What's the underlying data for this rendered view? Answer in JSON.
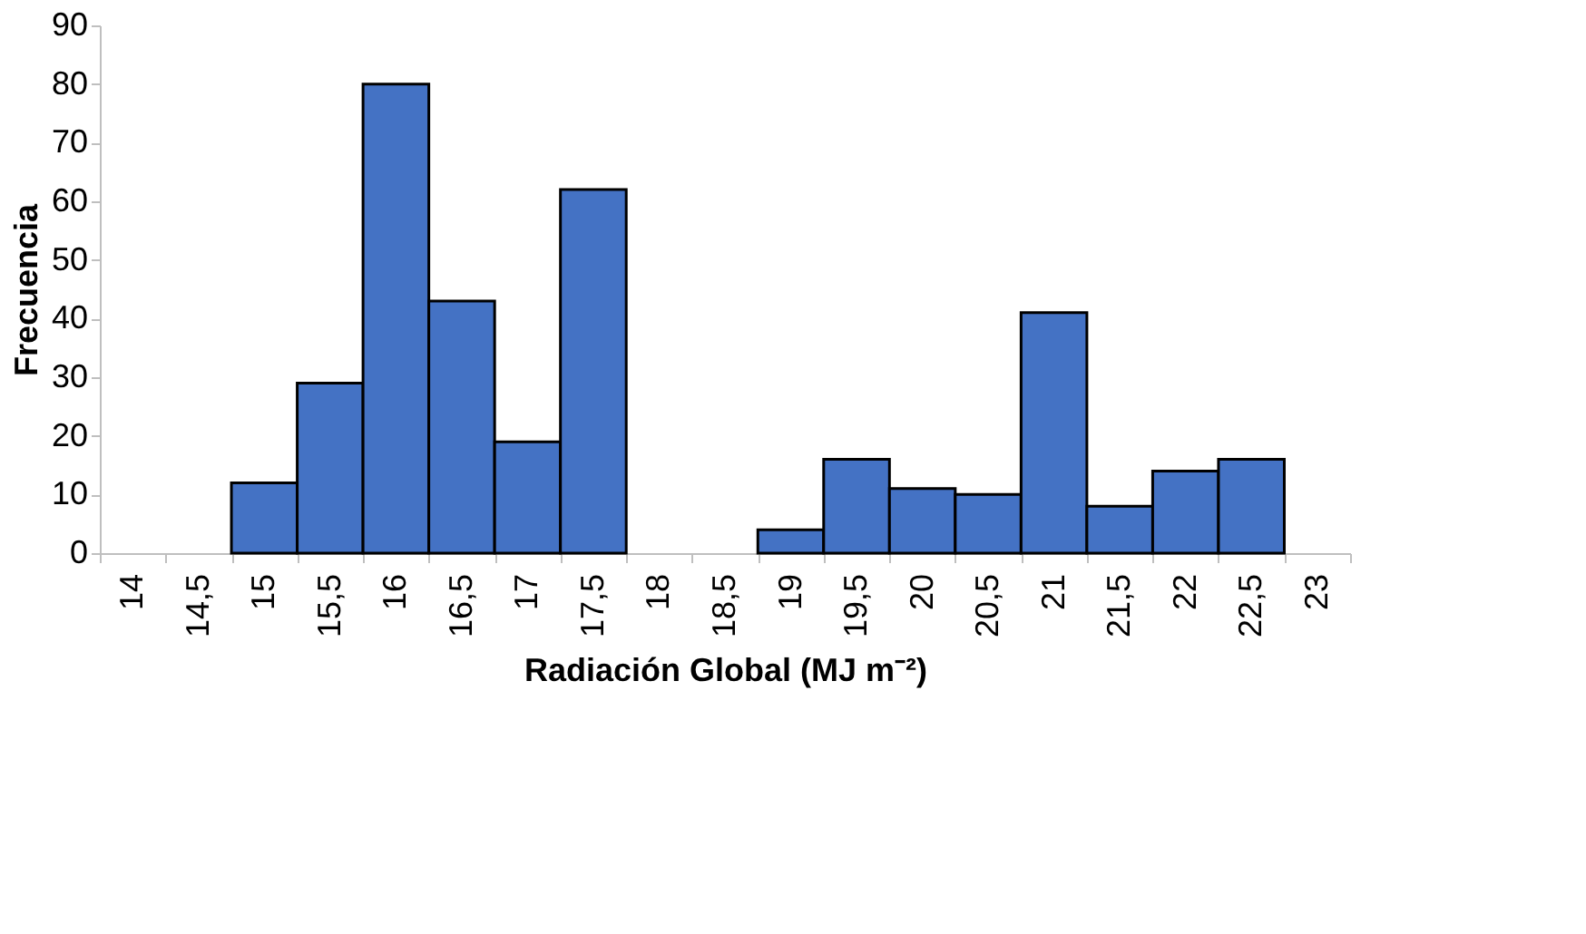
{
  "chart_data": {
    "type": "bar",
    "xlabel": "Radiación Global (MJ m⁻²)",
    "ylabel": "Frecuencia",
    "categories": [
      "14",
      "14,5",
      "15",
      "15,5",
      "16",
      "16,5",
      "17",
      "17,5",
      "18",
      "18,5",
      "19",
      "19,5",
      "20",
      "20,5",
      "21",
      "21,5",
      "22",
      "22,5",
      "23"
    ],
    "values": [
      0,
      0,
      12,
      29,
      80,
      43,
      19,
      62,
      0,
      0,
      4,
      16,
      11,
      10,
      41,
      8,
      14,
      16,
      0
    ],
    "color": "#4472c4",
    "ylim": [
      0,
      90
    ],
    "yticks": [
      0,
      10,
      20,
      30,
      40,
      50,
      60,
      70,
      80,
      90
    ],
    "grid": false
  }
}
